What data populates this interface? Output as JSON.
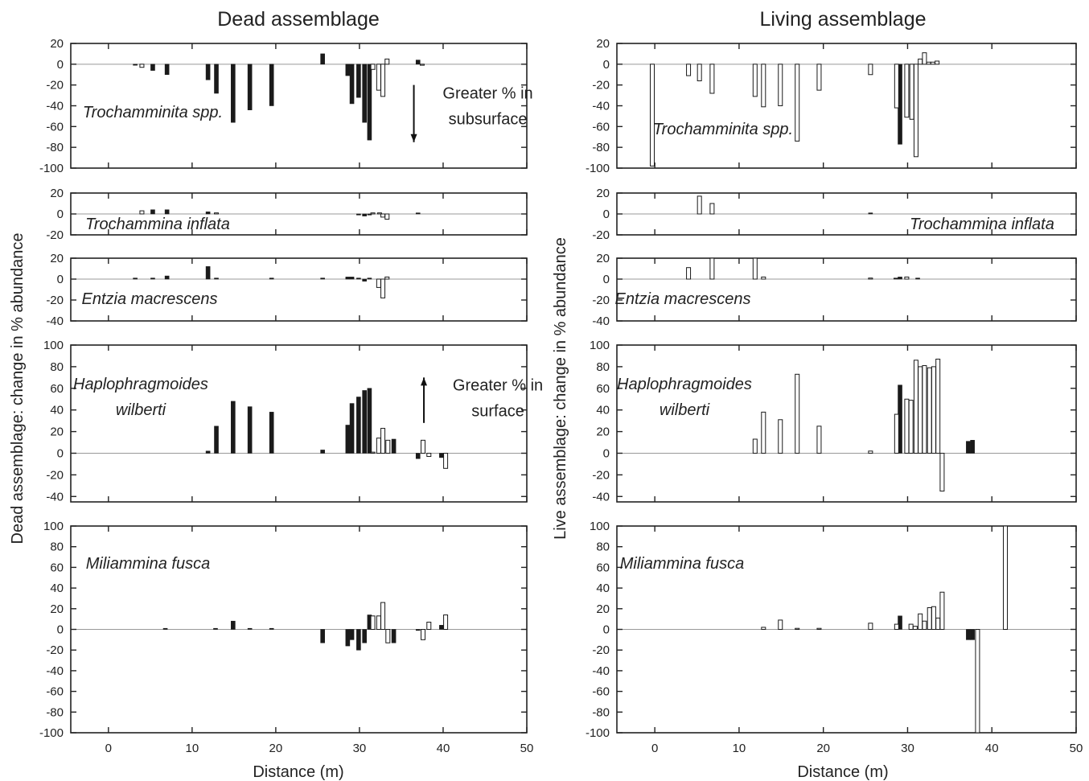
{
  "figure": {
    "titles": [
      "Dead assemblage",
      "Living assemblage"
    ],
    "ylabels": [
      "Dead assemblage: change in % abundance",
      "Live assemblage: change in % abundance"
    ],
    "xlabel": "Distance (m)"
  },
  "chart_data": [
    {
      "type": "bar",
      "column": 0,
      "row": 0,
      "taxon_lines": [
        "Trochamminita spp."
      ],
      "xlim": [
        -4.5,
        50
      ],
      "ylim": [
        -100,
        20
      ],
      "xticks": [
        0,
        10,
        20,
        30,
        40,
        50
      ],
      "yticks": [
        20,
        0,
        -20,
        -40,
        -60,
        -80,
        -100
      ],
      "annotation": {
        "lines": [
          "Greater % in",
          "subsurface"
        ],
        "arrow": "down",
        "x": 36.5,
        "y_from": -20,
        "y_to": -75
      },
      "series": [
        {
          "fill": "black",
          "bars": [
            [
              3.2,
              -1
            ],
            [
              5.3,
              -6
            ],
            [
              7,
              -10
            ],
            [
              11.9,
              -15
            ],
            [
              12.9,
              -28
            ],
            [
              14.9,
              -56
            ],
            [
              16.9,
              -44
            ],
            [
              19.5,
              -40
            ],
            [
              25.6,
              10
            ],
            [
              28.6,
              -11
            ],
            [
              29.1,
              -38
            ],
            [
              29.9,
              -32
            ],
            [
              30.6,
              -56
            ],
            [
              31.2,
              -73
            ],
            [
              37,
              4
            ]
          ]
        },
        {
          "fill": "white",
          "bars": [
            [
              4,
              -3
            ],
            [
              31.6,
              -5
            ],
            [
              32.3,
              -25
            ],
            [
              32.8,
              -31
            ],
            [
              33.3,
              5
            ],
            [
              37.5,
              -1
            ]
          ]
        }
      ]
    },
    {
      "type": "bar",
      "column": 0,
      "row": 1,
      "taxon_lines": [
        "Trochammina inflata"
      ],
      "xlim": [
        -4.5,
        50
      ],
      "ylim": [
        -20,
        20
      ],
      "xticks": [
        0,
        10,
        20,
        30,
        40,
        50
      ],
      "yticks": [
        20,
        0,
        -20
      ],
      "series": [
        {
          "fill": "black",
          "bars": [
            [
              5.3,
              4
            ],
            [
              7,
              4
            ],
            [
              11.9,
              2
            ],
            [
              29.9,
              -1
            ],
            [
              30.6,
              -2
            ],
            [
              31.2,
              -1
            ],
            [
              37,
              1
            ]
          ]
        },
        {
          "fill": "white",
          "bars": [
            [
              4,
              3
            ],
            [
              12.9,
              1
            ],
            [
              31.6,
              1
            ],
            [
              32.4,
              1
            ],
            [
              32.8,
              -3
            ],
            [
              33.3,
              -5
            ]
          ]
        }
      ]
    },
    {
      "type": "bar",
      "column": 0,
      "row": 2,
      "taxon_lines": [
        "Entzia macrescens"
      ],
      "xlim": [
        -4.5,
        50
      ],
      "ylim": [
        -40,
        20
      ],
      "xticks": [
        0,
        10,
        20,
        30,
        40,
        50
      ],
      "yticks": [
        20,
        0,
        -20,
        -40
      ],
      "series": [
        {
          "fill": "black",
          "bars": [
            [
              3.2,
              1
            ],
            [
              5.3,
              1
            ],
            [
              7,
              3
            ],
            [
              11.9,
              12
            ],
            [
              12.9,
              1
            ],
            [
              19.5,
              1
            ],
            [
              25.6,
              1
            ],
            [
              28.6,
              2
            ],
            [
              29.1,
              2
            ],
            [
              29.9,
              1
            ],
            [
              30.6,
              -2
            ],
            [
              31.2,
              1
            ]
          ]
        },
        {
          "fill": "white",
          "bars": [
            [
              32.3,
              -8
            ],
            [
              32.8,
              -18
            ],
            [
              33.3,
              2
            ]
          ]
        }
      ]
    },
    {
      "type": "bar",
      "column": 0,
      "row": 3,
      "taxon_lines": [
        "Haplophragmoides",
        "wilberti"
      ],
      "xlim": [
        -4.5,
        50
      ],
      "ylim": [
        -45,
        100
      ],
      "xticks": [
        0,
        10,
        20,
        30,
        40,
        50
      ],
      "yticks": [
        100,
        80,
        60,
        40,
        20,
        0,
        -20,
        -40
      ],
      "annotation": {
        "lines": [
          "Greater % in",
          "surface"
        ],
        "arrow": "up",
        "x": 37.7,
        "y_from": 28,
        "y_to": 70
      },
      "series": [
        {
          "fill": "black",
          "bars": [
            [
              11.9,
              2
            ],
            [
              12.9,
              25
            ],
            [
              14.9,
              48
            ],
            [
              16.9,
              43
            ],
            [
              19.5,
              38
            ],
            [
              25.6,
              3
            ],
            [
              28.6,
              26
            ],
            [
              29.1,
              46
            ],
            [
              29.9,
              52
            ],
            [
              30.6,
              58
            ],
            [
              31.2,
              60
            ],
            [
              34.1,
              13
            ],
            [
              37,
              -5
            ],
            [
              39.8,
              -4
            ]
          ]
        },
        {
          "fill": "white",
          "bars": [
            [
              31.6,
              1
            ],
            [
              32.3,
              14
            ],
            [
              32.8,
              23
            ],
            [
              33.4,
              12
            ],
            [
              37.6,
              12
            ],
            [
              38.3,
              -3
            ],
            [
              40.3,
              -14
            ]
          ]
        }
      ]
    },
    {
      "type": "bar",
      "column": 0,
      "row": 4,
      "taxon_lines": [
        "Miliammina fusca"
      ],
      "xlim": [
        -4.5,
        50
      ],
      "ylim": [
        -100,
        100
      ],
      "xticks": [
        0,
        10,
        20,
        30,
        40,
        50
      ],
      "yticks": [
        100,
        80,
        60,
        40,
        20,
        0,
        -20,
        -40,
        -60,
        -80,
        -100
      ],
      "series": [
        {
          "fill": "black",
          "bars": [
            [
              6.8,
              1
            ],
            [
              12.8,
              1
            ],
            [
              14.9,
              8
            ],
            [
              16.9,
              1
            ],
            [
              19.5,
              1
            ],
            [
              25.6,
              -13
            ],
            [
              28.6,
              -16
            ],
            [
              29.1,
              -10
            ],
            [
              29.9,
              -20
            ],
            [
              30.6,
              -13
            ],
            [
              31.2,
              14
            ],
            [
              34.1,
              -13
            ],
            [
              37,
              -1
            ],
            [
              39.8,
              4
            ]
          ]
        },
        {
          "fill": "white",
          "bars": [
            [
              31.6,
              13
            ],
            [
              32.3,
              13
            ],
            [
              32.8,
              26
            ],
            [
              33.4,
              -13
            ],
            [
              37.6,
              -10
            ],
            [
              38.3,
              7
            ],
            [
              40.3,
              14
            ]
          ]
        }
      ]
    },
    {
      "type": "bar",
      "column": 1,
      "row": 0,
      "taxon_lines": [
        "Trochamminita spp."
      ],
      "xlim": [
        -4.5,
        50
      ],
      "ylim": [
        -100,
        20
      ],
      "xticks": [
        0,
        10,
        20,
        30,
        40,
        50
      ],
      "yticks": [
        20,
        0,
        -20,
        -40,
        -60,
        -80,
        -100
      ],
      "series": [
        {
          "fill": "black",
          "bars": [
            [
              29.1,
              -77
            ]
          ]
        },
        {
          "fill": "white",
          "bars": [
            [
              -0.3,
              -98
            ],
            [
              4,
              -11
            ],
            [
              5.3,
              -16
            ],
            [
              6.8,
              -28
            ],
            [
              11.9,
              -31
            ],
            [
              12.9,
              -41
            ],
            [
              14.9,
              -40
            ],
            [
              16.9,
              -74
            ],
            [
              19.5,
              -25
            ],
            [
              25.6,
              -10
            ],
            [
              28.7,
              -42
            ],
            [
              29.9,
              -51
            ],
            [
              30.5,
              -53
            ],
            [
              31,
              -89
            ],
            [
              31.5,
              5
            ],
            [
              32,
              11
            ],
            [
              32.5,
              2
            ],
            [
              33,
              2
            ],
            [
              33.5,
              3
            ]
          ]
        }
      ]
    },
    {
      "type": "bar",
      "column": 1,
      "row": 1,
      "taxon_lines": [
        "Trochammina inflata"
      ],
      "xlim": [
        -4.5,
        50
      ],
      "ylim": [
        -20,
        20
      ],
      "xticks": [
        0,
        10,
        20,
        30,
        40,
        50
      ],
      "yticks": [
        20,
        0,
        -20
      ],
      "series": [
        {
          "fill": "black",
          "bars": [
            [
              25.6,
              1
            ]
          ]
        },
        {
          "fill": "white",
          "bars": [
            [
              5.3,
              17
            ],
            [
              6.8,
              10
            ]
          ]
        }
      ]
    },
    {
      "type": "bar",
      "column": 1,
      "row": 2,
      "taxon_lines": [
        "Entzia macrescens"
      ],
      "xlim": [
        -4.5,
        50
      ],
      "ylim": [
        -40,
        20
      ],
      "xticks": [
        0,
        10,
        20,
        30,
        40,
        50
      ],
      "yticks": [
        20,
        0,
        -20,
        -40
      ],
      "series": [
        {
          "fill": "black",
          "bars": [
            [
              28.6,
              1
            ],
            [
              29.1,
              2
            ],
            [
              31.2,
              1
            ]
          ]
        },
        {
          "fill": "white",
          "bars": [
            [
              4,
              11
            ],
            [
              6.8,
              20
            ],
            [
              11.9,
              20
            ],
            [
              12.9,
              2
            ],
            [
              25.6,
              1
            ],
            [
              29.9,
              2
            ]
          ]
        }
      ]
    },
    {
      "type": "bar",
      "column": 1,
      "row": 3,
      "taxon_lines": [
        "Haplophragmoides",
        "wilberti"
      ],
      "xlim": [
        -4.5,
        50
      ],
      "ylim": [
        -45,
        100
      ],
      "xticks": [
        0,
        10,
        20,
        30,
        40,
        50
      ],
      "yticks": [
        100,
        80,
        60,
        40,
        20,
        0,
        -20,
        -40
      ],
      "series": [
        {
          "fill": "black",
          "bars": [
            [
              29.1,
              63
            ],
            [
              37.2,
              11
            ],
            [
              37.7,
              12
            ]
          ]
        },
        {
          "fill": "white",
          "bars": [
            [
              11.9,
              13
            ],
            [
              12.9,
              38
            ],
            [
              14.9,
              31
            ],
            [
              16.9,
              73
            ],
            [
              19.5,
              25
            ],
            [
              25.6,
              2
            ],
            [
              28.7,
              36
            ],
            [
              29.9,
              50
            ],
            [
              30.4,
              49
            ],
            [
              31,
              86
            ],
            [
              31.5,
              80
            ],
            [
              32,
              81
            ],
            [
              32.6,
              79
            ],
            [
              33.1,
              80
            ],
            [
              33.6,
              87
            ],
            [
              34.1,
              -35
            ]
          ]
        }
      ]
    },
    {
      "type": "bar",
      "column": 1,
      "row": 4,
      "taxon_lines": [
        "Miliammina fusca"
      ],
      "xlim": [
        -4.5,
        50
      ],
      "ylim": [
        -100,
        100
      ],
      "xticks": [
        0,
        10,
        20,
        30,
        40,
        50
      ],
      "yticks": [
        100,
        80,
        60,
        40,
        20,
        0,
        -20,
        -40,
        -60,
        -80,
        -100
      ],
      "series": [
        {
          "fill": "black",
          "bars": [
            [
              29.1,
              13
            ],
            [
              37.2,
              -10
            ],
            [
              37.7,
              -10
            ]
          ]
        },
        {
          "fill": "white",
          "bars": [
            [
              12.9,
              2
            ],
            [
              14.9,
              9
            ],
            [
              16.9,
              1
            ],
            [
              19.5,
              1
            ],
            [
              25.6,
              6
            ],
            [
              28.7,
              5
            ],
            [
              30.4,
              5
            ],
            [
              30.9,
              3
            ],
            [
              31.5,
              15
            ],
            [
              32,
              8
            ],
            [
              32.6,
              21
            ],
            [
              33.1,
              22
            ],
            [
              33.6,
              11
            ],
            [
              34.1,
              36
            ],
            [
              38.3,
              -100
            ],
            [
              41.6,
              100
            ]
          ]
        }
      ]
    }
  ]
}
